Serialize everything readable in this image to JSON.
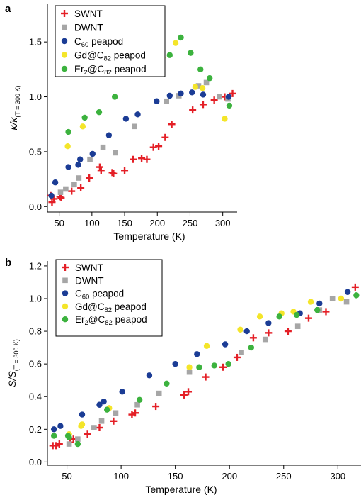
{
  "chart_data": [
    {
      "panel_label": "a",
      "type": "scatter",
      "xlabel": "Temperature (K)",
      "ylabel": {
        "main": "κ/κ",
        "sub": "(T = 300 K)"
      },
      "xlim": [
        32,
        322
      ],
      "ylim": [
        -0.05,
        1.85
      ],
      "xticks": [
        50,
        100,
        150,
        200,
        250,
        300
      ],
      "yticks": [
        0.0,
        0.5,
        1.0,
        1.5
      ],
      "ytick_labels": [
        "0.0",
        "0.5",
        "1.0",
        "1.5"
      ],
      "legend_position": "top-left",
      "series": [
        {
          "name": "SWNT",
          "label_main": "SWNT",
          "label_sub": "",
          "label_tail": "",
          "marker": "plus",
          "color": "#e41f26",
          "points": [
            [
              37,
              0.1
            ],
            [
              39,
              0.04
            ],
            [
              42,
              0.07
            ],
            [
              51,
              0.09
            ],
            [
              53,
              0.08
            ],
            [
              69,
              0.14
            ],
            [
              83,
              0.17
            ],
            [
              96,
              0.26
            ],
            [
              112,
              0.36
            ],
            [
              114,
              0.33
            ],
            [
              131,
              0.31
            ],
            [
              133,
              0.3
            ],
            [
              150,
              0.33
            ],
            [
              163,
              0.43
            ],
            [
              176,
              0.44
            ],
            [
              184,
              0.43
            ],
            [
              194,
              0.54
            ],
            [
              202,
              0.55
            ],
            [
              212,
              0.63
            ],
            [
              222,
              0.75
            ],
            [
              254,
              0.88
            ],
            [
              270,
              0.93
            ],
            [
              287,
              0.97
            ],
            [
              303,
              1.0
            ],
            [
              315,
              1.03
            ]
          ]
        },
        {
          "name": "DWNT",
          "label_main": "DWNT",
          "label_sub": "",
          "label_tail": "",
          "marker": "square",
          "color": "#a6a6a6",
          "points": [
            [
              52,
              0.13
            ],
            [
              60,
              0.16
            ],
            [
              73,
              0.2
            ],
            [
              80,
              0.26
            ],
            [
              97,
              0.43
            ],
            [
              117,
              0.54
            ],
            [
              136,
              0.49
            ],
            [
              165,
              0.73
            ],
            [
              214,
              0.96
            ],
            [
              233,
              1.01
            ],
            [
              263,
              1.1
            ],
            [
              275,
              1.13
            ],
            [
              295,
              1.0
            ],
            [
              308,
              0.98
            ]
          ]
        },
        {
          "name": "C60 peapod",
          "label_main": "C",
          "label_sub": "60",
          "label_tail": " peapod",
          "marker": "circle",
          "color": "#1b3c95",
          "points": [
            [
              38,
              0.1
            ],
            [
              44,
              0.22
            ],
            [
              64,
              0.36
            ],
            [
              79,
              0.38
            ],
            [
              82,
              0.43
            ],
            [
              101,
              0.48
            ],
            [
              126,
              0.65
            ],
            [
              152,
              0.8
            ],
            [
              170,
              0.84
            ],
            [
              199,
              0.96
            ],
            [
              219,
              1.01
            ],
            [
              236,
              1.03
            ],
            [
              253,
              1.04
            ],
            [
              270,
              1.02
            ],
            [
              309,
              1.0
            ]
          ]
        },
        {
          "name": "Gd@C82 peapod",
          "label_main": "Gd@C",
          "label_sub": "82",
          "label_tail": " peapod",
          "marker": "circle",
          "color": "#f4e529",
          "points": [
            [
              63,
              0.55
            ],
            [
              86,
              0.73
            ],
            [
              162,
              1.26
            ],
            [
              179,
              1.41
            ],
            [
              198,
              1.35
            ],
            [
              208,
              1.36
            ],
            [
              228,
              1.49
            ],
            [
              258,
              1.09
            ],
            [
              269,
              1.08
            ],
            [
              303,
              0.8
            ]
          ]
        },
        {
          "name": "Er2@C82 peapod",
          "label_main": "Er",
          "label_sub": "2",
          "label_tail": "@C",
          "label_sub2": "82",
          "label_tail2": " peapod",
          "marker": "circle",
          "color": "#3cb23e",
          "points": [
            [
              64,
              0.68
            ],
            [
              89,
              0.81
            ],
            [
              111,
              0.86
            ],
            [
              135,
              1.0
            ],
            [
              152,
              1.25
            ],
            [
              167,
              1.29
            ],
            [
              185,
              1.38
            ],
            [
              205,
              1.37
            ],
            [
              219,
              1.38
            ],
            [
              236,
              1.54
            ],
            [
              251,
              1.4
            ],
            [
              266,
              1.25
            ],
            [
              280,
              1.17
            ],
            [
              310,
              0.92
            ]
          ]
        }
      ]
    },
    {
      "panel_label": "b",
      "type": "scatter",
      "xlabel": "Temperature (K)",
      "ylabel": {
        "main": "S/S",
        "sub": "(T = 300 K)"
      },
      "xlim": [
        32,
        322
      ],
      "ylim": [
        -0.02,
        1.23
      ],
      "xticks": [
        50,
        100,
        150,
        200,
        250,
        300
      ],
      "yticks": [
        0.0,
        0.2,
        0.4,
        0.6,
        0.8,
        1.0,
        1.2
      ],
      "ytick_labels": [
        "0.0",
        "0.2",
        "0.4",
        "0.6",
        "0.8",
        "1.0",
        "1.2"
      ],
      "legend_position": "top-left",
      "series": [
        {
          "name": "SWNT",
          "label_main": "SWNT",
          "label_sub": "",
          "label_tail": "",
          "marker": "plus",
          "color": "#e41f26",
          "points": [
            [
              37,
              0.1
            ],
            [
              40,
              0.1
            ],
            [
              43,
              0.11
            ],
            [
              53,
              0.12
            ],
            [
              56,
              0.14
            ],
            [
              69,
              0.17
            ],
            [
              80,
              0.21
            ],
            [
              93,
              0.25
            ],
            [
              110,
              0.29
            ],
            [
              113,
              0.3
            ],
            [
              132,
              0.34
            ],
            [
              158,
              0.41
            ],
            [
              162,
              0.43
            ],
            [
              178,
              0.52
            ],
            [
              194,
              0.58
            ],
            [
              207,
              0.64
            ],
            [
              222,
              0.76
            ],
            [
              236,
              0.79
            ],
            [
              254,
              0.8
            ],
            [
              273,
              0.88
            ],
            [
              289,
              0.92
            ],
            [
              316,
              1.07
            ]
          ]
        },
        {
          "name": "DWNT",
          "label_main": "DWNT",
          "label_sub": "",
          "label_tail": "",
          "marker": "square",
          "color": "#a6a6a6",
          "points": [
            [
              52,
              0.11
            ],
            [
              60,
              0.14
            ],
            [
              75,
              0.21
            ],
            [
              82,
              0.25
            ],
            [
              95,
              0.3
            ],
            [
              115,
              0.35
            ],
            [
              135,
              0.42
            ],
            [
              163,
              0.55
            ],
            [
              211,
              0.67
            ],
            [
              233,
              0.75
            ],
            [
              263,
              0.83
            ],
            [
              283,
              0.93
            ],
            [
              295,
              1.0
            ],
            [
              308,
              0.98
            ]
          ]
        },
        {
          "name": "C60 peapod",
          "label_main": "C",
          "label_sub": "60",
          "label_tail": " peapod",
          "marker": "circle",
          "color": "#1b3c95",
          "points": [
            [
              38,
              0.2
            ],
            [
              44,
              0.22
            ],
            [
              64,
              0.29
            ],
            [
              80,
              0.35
            ],
            [
              84,
              0.37
            ],
            [
              101,
              0.43
            ],
            [
              126,
              0.53
            ],
            [
              150,
              0.6
            ],
            [
              170,
              0.66
            ],
            [
              196,
              0.72
            ],
            [
              216,
              0.8
            ],
            [
              236,
              0.85
            ],
            [
              265,
              0.91
            ],
            [
              283,
              0.97
            ],
            [
              309,
              1.04
            ]
          ]
        },
        {
          "name": "Gd@C82 peapod",
          "label_main": "Gd@C",
          "label_sub": "82",
          "label_tail": " peapod",
          "marker": "circle",
          "color": "#f4e529",
          "points": [
            [
              52,
              0.17
            ],
            [
              63,
              0.22
            ],
            [
              64,
              0.23
            ],
            [
              89,
              0.33
            ],
            [
              163,
              0.58
            ],
            [
              179,
              0.71
            ],
            [
              210,
              0.81
            ],
            [
              228,
              0.89
            ],
            [
              248,
              0.91
            ],
            [
              259,
              0.92
            ],
            [
              275,
              0.98
            ],
            [
              303,
              1.0
            ]
          ]
        },
        {
          "name": "Er2@C82 peapod",
          "label_main": "Er",
          "label_sub": "2",
          "label_tail": "@C",
          "label_sub2": "82",
          "label_tail2": " peapod",
          "marker": "circle",
          "color": "#3cb23e",
          "points": [
            [
              38,
              0.16
            ],
            [
              51,
              0.16
            ],
            [
              52,
              0.15
            ],
            [
              60,
              0.11
            ],
            [
              87,
              0.32
            ],
            [
              117,
              0.38
            ],
            [
              142,
              0.48
            ],
            [
              172,
              0.58
            ],
            [
              186,
              0.59
            ],
            [
              199,
              0.6
            ],
            [
              220,
              0.7
            ],
            [
              246,
              0.89
            ],
            [
              262,
              0.9
            ],
            [
              281,
              0.93
            ],
            [
              317,
              1.02
            ]
          ]
        }
      ]
    }
  ]
}
